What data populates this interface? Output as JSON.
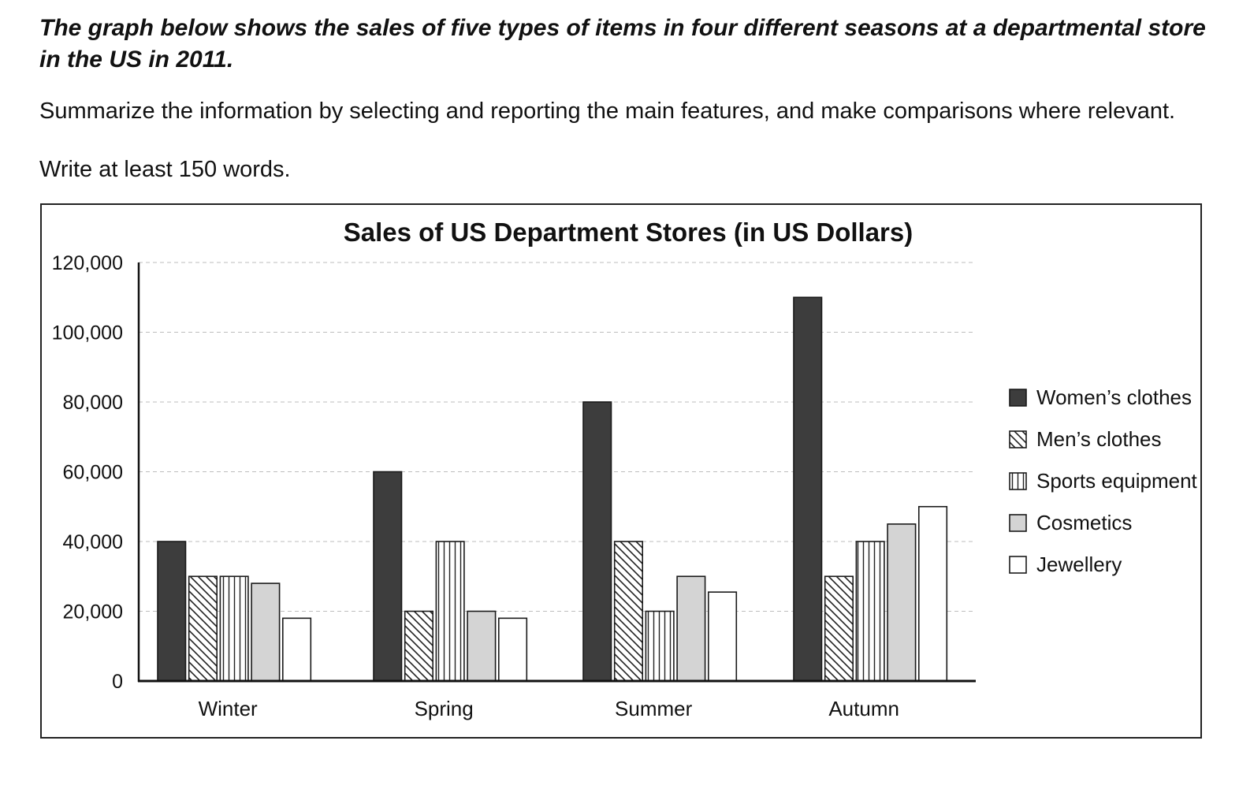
{
  "prompt": {
    "title": "The graph below shows the sales of five types of items in four different seasons at a departmental store in the US in 2011.",
    "instruction": "Summarize the information by selecting and reporting the main features, and make comparisons where relevant.",
    "word_count": "Write at least 150 words."
  },
  "chart_data": {
    "type": "bar",
    "title": "Sales of US Department Stores (in US Dollars)",
    "xlabel": "",
    "ylabel": "",
    "categories": [
      "Winter",
      "Spring",
      "Summer",
      "Autumn"
    ],
    "ylim": [
      0,
      120000
    ],
    "yticks": [
      0,
      20000,
      40000,
      60000,
      80000,
      100000,
      120000
    ],
    "ytick_labels": [
      "0",
      "20,000",
      "40,000",
      "60,000",
      "80,000",
      "100,000",
      "120,000"
    ],
    "grid": "horizontal dashed",
    "legend_position": "right",
    "series": [
      {
        "name": "Women’s clothes",
        "values": [
          40000,
          60000,
          80000,
          110000
        ],
        "fill": "#3d3d3d",
        "pattern": "solid"
      },
      {
        "name": "Men’s clothes",
        "values": [
          30000,
          20000,
          40000,
          30000
        ],
        "fill": "#ffffff",
        "pattern": "diagonal"
      },
      {
        "name": "Sports equipment",
        "values": [
          30000,
          40000,
          20000,
          40000
        ],
        "fill": "#ffffff",
        "pattern": "vertical"
      },
      {
        "name": "Cosmetics",
        "values": [
          28000,
          20000,
          30000,
          45000
        ],
        "fill": "#d4d4d4",
        "pattern": "solid"
      },
      {
        "name": "Jewellery",
        "values": [
          18000,
          18000,
          25500,
          50000
        ],
        "fill": "#ffffff",
        "pattern": "solid"
      }
    ]
  }
}
